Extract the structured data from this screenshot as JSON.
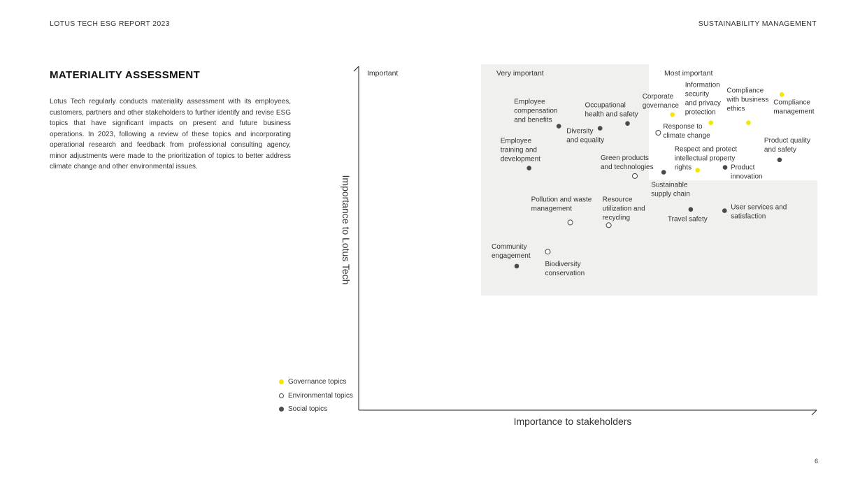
{
  "header": {
    "left": "LOTUS TECH ESG REPORT 2023",
    "right": "SUSTAINABILITY MANAGEMENT"
  },
  "section": {
    "title": "MATERIALITY ASSESSMENT",
    "body": "Lotus Tech regularly conducts materiality assessment with its employees, customers, partners and other stakeholders to further identify and revise ESG topics that have significant impacts on present and future business operations. In 2023, following a review of these topics and incorporating operational research and feedback from professional consulting agency, minor adjustments were made to the prioritization of topics to better address climate change and other environmental issues."
  },
  "page_number": "6",
  "colors": {
    "governance": "#f5e600",
    "environmental": "#ffffff",
    "social": "#4a4a4a",
    "zone_fill": "#f0f0ef"
  },
  "legend": [
    {
      "name": "Governance topics",
      "category": "governance"
    },
    {
      "name": "Environmental topics",
      "category": "environmental"
    },
    {
      "name": "Social topics",
      "category": "social"
    }
  ],
  "chart_data": {
    "type": "scatter",
    "title": "",
    "xlabel": "Importance to stakeholders",
    "ylabel": "Importance to Lotus Tech",
    "xlim": [
      0,
      1
    ],
    "ylim": [
      0,
      1
    ],
    "grid": false,
    "legend_position": "bottom-left",
    "zones": [
      {
        "label": "Important"
      },
      {
        "label": "Very important"
      },
      {
        "label": "Most important"
      }
    ],
    "points": [
      {
        "label": [
          "Employee",
          "compensation",
          "and benefits"
        ],
        "category": "social",
        "x": 0.437,
        "y": 0.826
      },
      {
        "label": [
          "Occupational",
          "health and safety"
        ],
        "category": "social",
        "x": 0.587,
        "y": 0.834
      },
      {
        "label": [
          "Diversity",
          "and equality"
        ],
        "category": "social",
        "x": 0.527,
        "y": 0.82
      },
      {
        "label": [
          "Corporate",
          "governance"
        ],
        "category": "governance",
        "x": 0.685,
        "y": 0.86
      },
      {
        "label": [
          "Information",
          "security",
          "and privacy",
          "protection"
        ],
        "category": "governance",
        "x": 0.769,
        "y": 0.836
      },
      {
        "label": [
          "Compliance",
          "with business",
          "ethics"
        ],
        "category": "governance",
        "x": 0.851,
        "y": 0.836
      },
      {
        "label": [
          "Compliance",
          "management"
        ],
        "category": "governance",
        "x": 0.924,
        "y": 0.918
      },
      {
        "label": [
          "Response to",
          "climate change"
        ],
        "category": "environmental",
        "x": 0.654,
        "y": 0.807
      },
      {
        "label": [
          "Employee",
          "training and",
          "development"
        ],
        "category": "social",
        "x": 0.372,
        "y": 0.704
      },
      {
        "label": [
          "Green products",
          "and technologies"
        ],
        "category": "environmental",
        "x": 0.603,
        "y": 0.681
      },
      {
        "label": [
          "Respect and protect",
          "intellectual property",
          "rights"
        ],
        "category": "governance",
        "x": 0.74,
        "y": 0.698
      },
      {
        "label": [
          "Product",
          "innovation"
        ],
        "category": "social",
        "x": 0.8,
        "y": 0.706
      },
      {
        "label": [
          "Product quality",
          "and safety"
        ],
        "category": "social",
        "x": 0.919,
        "y": 0.728
      },
      {
        "label": [
          "Sustainable",
          "supply chain"
        ],
        "category": "social",
        "x": 0.666,
        "y": 0.692
      },
      {
        "label": [
          "Pollution and waste",
          "management"
        ],
        "category": "environmental",
        "x": 0.462,
        "y": 0.546
      },
      {
        "label": [
          "Resource",
          "utilization and",
          "recycling"
        ],
        "category": "environmental",
        "x": 0.546,
        "y": 0.538
      },
      {
        "label": [
          "Travel safety"
        ],
        "category": "social",
        "x": 0.725,
        "y": 0.584
      },
      {
        "label": [
          "User services and",
          "satisfaction"
        ],
        "category": "social",
        "x": 0.799,
        "y": 0.58
      },
      {
        "label": [
          "Community",
          "engagement"
        ],
        "category": "social",
        "x": 0.345,
        "y": 0.419
      },
      {
        "label": [
          "Biodiversity",
          "conservation"
        ],
        "category": "environmental",
        "x": 0.413,
        "y": 0.461
      }
    ]
  }
}
